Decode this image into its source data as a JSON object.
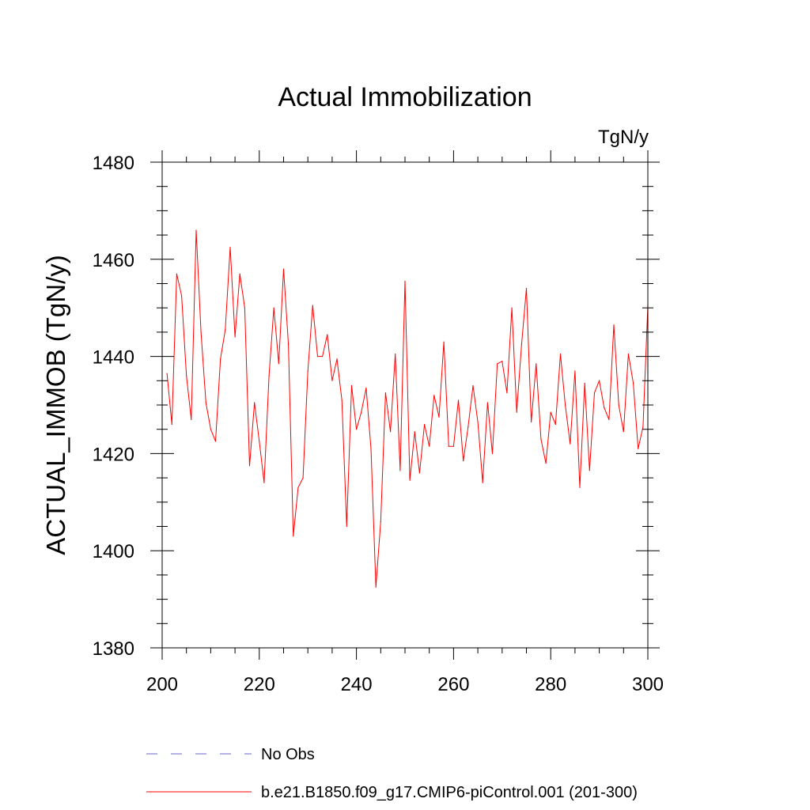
{
  "chart_data": {
    "type": "line",
    "title": "Actual Immobilization",
    "units": "TgN/y",
    "xlabel": "",
    "ylabel": "ACTUAL_IMMOB  (TgN/y)",
    "xlim": [
      200,
      300
    ],
    "ylim": [
      1380,
      1480
    ],
    "xticks": [
      200,
      220,
      240,
      260,
      280,
      300
    ],
    "xtick_labels": [
      "200",
      "220",
      "240",
      "260",
      "280",
      "300"
    ],
    "yticks": [
      1380,
      1400,
      1420,
      1440,
      1460,
      1480
    ],
    "ytick_labels": [
      "1380",
      "1400",
      "1420",
      "1440",
      "1460",
      "1480"
    ],
    "grid": false,
    "legend": [
      {
        "label": "No Obs",
        "color": "#6666cc",
        "style": "dashed"
      },
      {
        "label": "b.e21.B1850.f09_g17.CMIP6-piControl.001 (201-300)",
        "color": "#ff0000",
        "style": "solid"
      }
    ],
    "series": [
      {
        "name": "b.e21.B1850.f09_g17.CMIP6-piControl.001 (201-300)",
        "color": "#ff0000",
        "x": [
          201,
          202,
          203,
          204,
          205,
          206,
          207,
          208,
          209,
          210,
          211,
          212,
          213,
          214,
          215,
          216,
          217,
          218,
          219,
          220,
          221,
          222,
          223,
          224,
          225,
          226,
          227,
          228,
          229,
          230,
          231,
          232,
          233,
          234,
          235,
          236,
          237,
          238,
          239,
          240,
          241,
          242,
          243,
          244,
          245,
          246,
          247,
          248,
          249,
          250,
          251,
          252,
          253,
          254,
          255,
          256,
          257,
          258,
          259,
          260,
          261,
          262,
          263,
          264,
          265,
          266,
          267,
          268,
          269,
          270,
          271,
          272,
          273,
          274,
          275,
          276,
          277,
          278,
          279,
          280,
          281,
          282,
          283,
          284,
          285,
          286,
          287,
          288,
          289,
          290,
          291,
          292,
          293,
          294,
          295,
          296,
          297,
          298,
          299,
          300
        ],
        "values": [
          1436.5,
          1426,
          1457,
          1452.5,
          1436,
          1427,
          1466,
          1445,
          1430.5,
          1425,
          1422.5,
          1439.5,
          1445.5,
          1462.5,
          1444,
          1457,
          1450,
          1417.5,
          1430.5,
          1422.5,
          1414,
          1436,
          1450,
          1438.5,
          1458,
          1442.5,
          1403,
          1413,
          1415,
          1437,
          1450.5,
          1440,
          1440,
          1444.5,
          1435,
          1439.5,
          1431,
          1405,
          1434,
          1425,
          1428.5,
          1433.5,
          1421,
          1392.5,
          1406,
          1432.5,
          1424.5,
          1440.5,
          1416.5,
          1455.5,
          1414.5,
          1424.5,
          1416,
          1426,
          1421.5,
          1432,
          1427.5,
          1443,
          1421.5,
          1421.5,
          1431,
          1418.5,
          1425.5,
          1434,
          1426.5,
          1414,
          1430.5,
          1420,
          1438.5,
          1439,
          1432.5,
          1450,
          1428.5,
          1442.5,
          1454,
          1426.5,
          1438.5,
          1423,
          1418,
          1428.5,
          1426,
          1440.5,
          1430,
          1422,
          1437,
          1413,
          1434.5,
          1416.5,
          1432.5,
          1435,
          1429.5,
          1427,
          1446.5,
          1430,
          1424.5,
          1440.5,
          1434.5,
          1421,
          1425.5,
          1450.5
        ]
      }
    ]
  }
}
